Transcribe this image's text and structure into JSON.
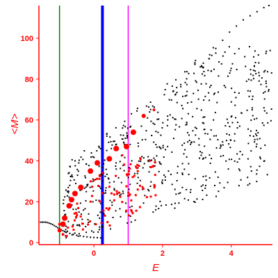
{
  "chart_data": {
    "type": "scatter",
    "xlabel": "E",
    "ylabel": "<M>",
    "xlim": [
      -1.6,
      5.2
    ],
    "ylim": [
      -1,
      116
    ],
    "x_ticks": [
      0,
      2,
      4
    ],
    "y_ticks": [
      0,
      20,
      40,
      60,
      80,
      100
    ],
    "grid": false,
    "legend": "none",
    "colors": {
      "axis": "#ff0000",
      "black_points": "#000000",
      "red_points": "#ff0000",
      "line_green": "#008000",
      "line_blue": "#0000ff",
      "line_magenta": "#ff00ff"
    },
    "vertical_lines": [
      {
        "x": -1.0,
        "color": "#008000",
        "style": "thin"
      },
      {
        "x": 0.25,
        "color": "#0000ff",
        "style": "thick"
      },
      {
        "x": 1.0,
        "color": "#ff00ff",
        "style": "thin"
      }
    ],
    "red_large_points": [
      {
        "x": -1.0,
        "y": 6,
        "size": 3
      },
      {
        "x": -0.9,
        "y": 9,
        "size": 4
      },
      {
        "x": -0.85,
        "y": 12,
        "size": 4
      },
      {
        "x": -0.72,
        "y": 18,
        "size": 4
      },
      {
        "x": -0.65,
        "y": 21,
        "size": 4
      },
      {
        "x": -0.55,
        "y": 24,
        "size": 4
      },
      {
        "x": -0.38,
        "y": 27,
        "size": 4
      },
      {
        "x": -0.1,
        "y": 35,
        "size": 4
      },
      {
        "x": 0.1,
        "y": 39,
        "size": 4
      },
      {
        "x": 0.45,
        "y": 41,
        "size": 4
      },
      {
        "x": 0.65,
        "y": 46,
        "size": 4
      },
      {
        "x": 0.95,
        "y": 47,
        "size": 4
      },
      {
        "x": 1.15,
        "y": 54,
        "size": 4
      },
      {
        "x": 1.45,
        "y": 62,
        "size": 3
      },
      {
        "x": 1.75,
        "y": 65,
        "size": 2
      },
      {
        "x": -1.0,
        "y": 9,
        "size": 2
      },
      {
        "x": -0.9,
        "y": 4,
        "size": 2
      }
    ],
    "red_small_points_region": {
      "x_range": [
        -0.8,
        1.8
      ],
      "y_range": [
        3,
        44
      ],
      "count": 95
    },
    "black_envelope_points": [
      {
        "x": -1.55,
        "y": 10
      },
      {
        "x": -1.5,
        "y": 10
      },
      {
        "x": -1.45,
        "y": 10
      },
      {
        "x": -1.4,
        "y": 10
      },
      {
        "x": -1.35,
        "y": 9.8
      },
      {
        "x": -1.3,
        "y": 9.5
      },
      {
        "x": -1.25,
        "y": 9.2
      },
      {
        "x": -1.2,
        "y": 8.8
      },
      {
        "x": -1.15,
        "y": 8.3
      },
      {
        "x": -1.1,
        "y": 7.8
      },
      {
        "x": -1.05,
        "y": 7.3
      },
      {
        "x": -1.0,
        "y": 6.8
      },
      {
        "x": -0.95,
        "y": 6.3
      },
      {
        "x": -0.9,
        "y": 5.8
      },
      {
        "x": -0.85,
        "y": 5.4
      },
      {
        "x": -0.8,
        "y": 5.0
      },
      {
        "x": -0.7,
        "y": 4.5
      },
      {
        "x": -0.6,
        "y": 4.0
      },
      {
        "x": -0.5,
        "y": 3.6
      },
      {
        "x": -0.4,
        "y": 3.3
      },
      {
        "x": -0.3,
        "y": 3.0
      },
      {
        "x": -0.2,
        "y": 2.8
      },
      {
        "x": -0.1,
        "y": 2.6
      },
      {
        "x": 0.0,
        "y": 2.5
      },
      {
        "x": 0.1,
        "y": 2.4
      },
      {
        "x": 0.2,
        "y": 2.3
      }
    ],
    "black_upper_diagonal": [
      {
        "x": 3.15,
        "y": 86
      },
      {
        "x": 3.35,
        "y": 90
      },
      {
        "x": 3.55,
        "y": 95
      },
      {
        "x": 3.75,
        "y": 99
      },
      {
        "x": 3.95,
        "y": 103
      },
      {
        "x": 4.15,
        "y": 106
      },
      {
        "x": 4.35,
        "y": 109
      },
      {
        "x": 4.55,
        "y": 111
      },
      {
        "x": 4.75,
        "y": 113
      },
      {
        "x": 4.95,
        "y": 115
      },
      {
        "x": 5.1,
        "y": 116
      }
    ],
    "black_cloud_region": {
      "x_range": [
        -0.9,
        5.2
      ],
      "y_range": [
        0,
        96
      ],
      "count": 650
    }
  }
}
